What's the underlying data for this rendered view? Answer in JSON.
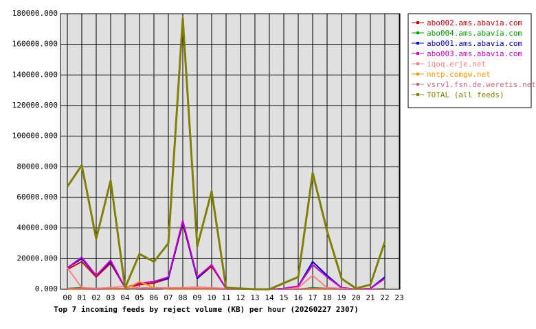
{
  "chart_data": {
    "type": "line",
    "title": "Top 7 incoming feeds by reject volume (KB) per hour (20260227 2307)",
    "categories": [
      "00",
      "01",
      "02",
      "03",
      "04",
      "05",
      "06",
      "07",
      "08",
      "09",
      "10",
      "11",
      "12",
      "13",
      "14",
      "15",
      "16",
      "17",
      "18",
      "19",
      "20",
      "21",
      "22",
      "23"
    ],
    "ylim": [
      0,
      180000
    ],
    "yticks": [
      {
        "value": 0,
        "label": "0.000"
      },
      {
        "value": 20000,
        "label": "20000.000"
      },
      {
        "value": 40000,
        "label": "40000.000"
      },
      {
        "value": 60000,
        "label": "60000.000"
      },
      {
        "value": 80000,
        "label": "80000.000"
      },
      {
        "value": 100000,
        "label": "100000.000"
      },
      {
        "value": 120000,
        "label": "120000.000"
      },
      {
        "value": 140000,
        "label": "140000.000"
      },
      {
        "value": 160000,
        "label": "160000.000"
      },
      {
        "value": 180000,
        "label": "180000.000"
      }
    ],
    "grid": true,
    "legend": "right",
    "series": [
      {
        "name": "abo002.ams.abavia.com",
        "color": "#cc0000",
        "values": [
          13000,
          18000,
          8000,
          17000,
          1000,
          3000,
          4000,
          7000,
          43000,
          7000,
          15000,
          500,
          0,
          0,
          0,
          500,
          2000,
          16000,
          8000,
          1000,
          0,
          500,
          7000,
          null
        ]
      },
      {
        "name": "abo004.ams.abavia.com",
        "color": "#00a000",
        "values": [
          500,
          1000,
          500,
          1000,
          0,
          500,
          500,
          500,
          1000,
          500,
          500,
          0,
          0,
          0,
          0,
          0,
          0,
          1000,
          500,
          0,
          0,
          0,
          500,
          null
        ]
      },
      {
        "name": "abo001.ams.abavia.com",
        "color": "#0000cc",
        "values": [
          14000,
          20000,
          9000,
          18000,
          1000,
          4000,
          5000,
          7000,
          44000,
          7000,
          16000,
          500,
          0,
          0,
          0,
          500,
          2000,
          18000,
          9000,
          1000,
          0,
          500,
          8000,
          null
        ]
      },
      {
        "name": "abo003.ams.abavia.com",
        "color": "#cc00cc",
        "values": [
          14000,
          21000,
          9000,
          19000,
          1000,
          4000,
          5000,
          8000,
          45000,
          8000,
          16000,
          500,
          0,
          0,
          0,
          500,
          2000,
          16000,
          8000,
          1000,
          0,
          500,
          7000,
          null
        ]
      },
      {
        "name": "iqoq.erje.net",
        "color": "#ff8080",
        "values": [
          14000,
          1000,
          500,
          1000,
          2000,
          1000,
          1000,
          1000,
          1000,
          1500,
          1000,
          500,
          0,
          0,
          0,
          0,
          1000,
          9000,
          1000,
          500,
          0,
          0,
          0,
          null
        ]
      },
      {
        "name": "nntp.comgw.net",
        "color": "#ff9900",
        "values": [
          0,
          0,
          0,
          0,
          0,
          5000,
          1000,
          0,
          0,
          0,
          0,
          0,
          0,
          0,
          0,
          0,
          0,
          0,
          0,
          0,
          0,
          0,
          0,
          null
        ]
      },
      {
        "name": "vsrv1.fsn.de.weretis.net",
        "color": "#cc6680",
        "values": [
          500,
          500,
          0,
          500,
          500,
          500,
          500,
          500,
          500,
          500,
          500,
          0,
          0,
          0,
          0,
          0,
          0,
          500,
          500,
          0,
          0,
          0,
          0,
          null
        ]
      },
      {
        "name": "TOTAL (all feeds)",
        "color": "#808000",
        "values": [
          67000,
          81000,
          33000,
          71000,
          1000,
          23000,
          18000,
          30000,
          177000,
          28000,
          64000,
          1000,
          500,
          0,
          0,
          4000,
          8000,
          76000,
          38000,
          7000,
          500,
          3000,
          31000,
          null
        ]
      }
    ]
  }
}
